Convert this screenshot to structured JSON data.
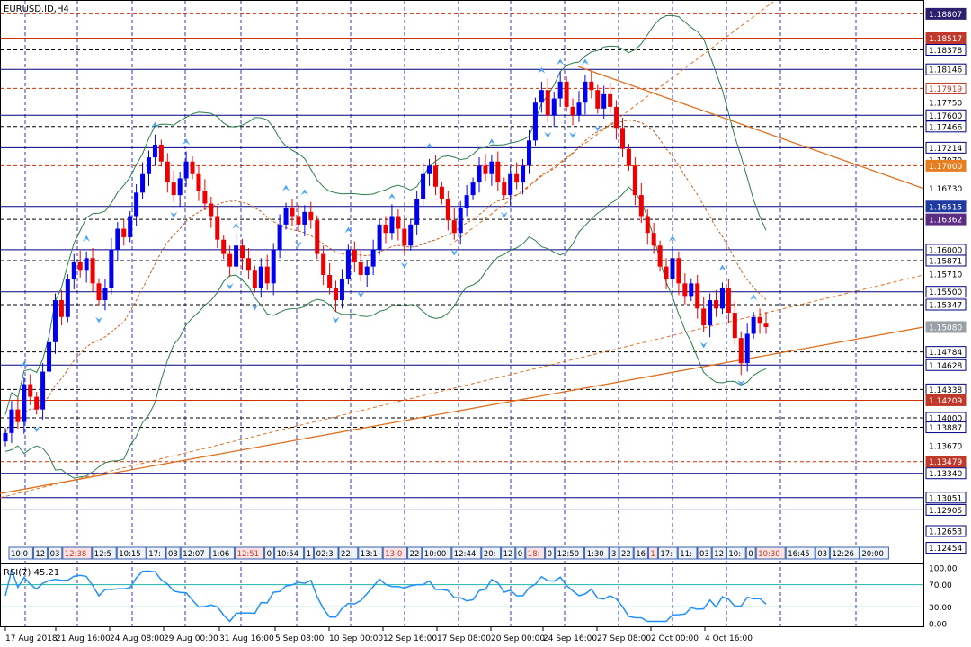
{
  "chart_data": {
    "type": "candlestick",
    "title": "EURUSD.ID,H4",
    "ylim": [
      1.123,
      1.1895
    ],
    "grid": true,
    "price_levels": [
      {
        "value": 1.18807,
        "label": "1.18807",
        "style": "badge-dark"
      },
      {
        "value": 1.18517,
        "label": "1.18517",
        "style": "badge-red"
      },
      {
        "value": 1.18378,
        "label": "1.18378",
        "style": "box"
      },
      {
        "value": 1.18146,
        "label": "1.18146",
        "style": "box"
      },
      {
        "value": 1.17919,
        "label": "1.17919",
        "style": "box-red"
      },
      {
        "value": 1.1775,
        "label": "1.17750",
        "style": "plain"
      },
      {
        "value": 1.176,
        "label": "1.17600",
        "style": "box"
      },
      {
        "value": 1.17466,
        "label": "1.17466",
        "style": "box"
      },
      {
        "value": 1.17214,
        "label": "1.17214",
        "style": "box"
      },
      {
        "value": 1.1707,
        "label": "1.17070",
        "style": "plain"
      },
      {
        "value": 1.17,
        "label": "1.17000",
        "style": "badge-orange"
      },
      {
        "value": 1.1673,
        "label": "1.16730",
        "style": "plain"
      },
      {
        "value": 1.16515,
        "label": "1.16515",
        "style": "badge-blue"
      },
      {
        "value": 1.16362,
        "label": "1.16362",
        "style": "badge-purple"
      },
      {
        "value": 1.16,
        "label": "1.16000",
        "style": "box"
      },
      {
        "value": 1.15871,
        "label": "1.15871",
        "style": "box"
      },
      {
        "value": 1.1571,
        "label": "1.15710",
        "style": "plain"
      },
      {
        "value": 1.155,
        "label": "1.15500",
        "style": "box"
      },
      {
        "value": 1.15347,
        "label": "1.15347",
        "style": "box"
      },
      {
        "value": 1.1508,
        "label": "1.15080",
        "style": "badge-gray"
      },
      {
        "value": 1.14784,
        "label": "1.14784",
        "style": "box"
      },
      {
        "value": 1.14628,
        "label": "1.14628",
        "style": "box"
      },
      {
        "value": 1.14338,
        "label": "1.14338",
        "style": "box"
      },
      {
        "value": 1.14209,
        "label": "1.14209",
        "style": "badge-red"
      },
      {
        "value": 1.14,
        "label": "1.14000",
        "style": "box"
      },
      {
        "value": 1.13887,
        "label": "1.13887",
        "style": "box"
      },
      {
        "value": 1.1367,
        "label": "1.13670",
        "style": "plain"
      },
      {
        "value": 1.13479,
        "label": "1.13479",
        "style": "badge-red"
      },
      {
        "value": 1.1334,
        "label": "1.13340",
        "style": "box"
      },
      {
        "value": 1.13051,
        "label": "1.13051",
        "style": "box"
      },
      {
        "value": 1.12905,
        "label": "1.12905",
        "style": "box"
      },
      {
        "value": 1.12653,
        "label": "1.12653",
        "style": "box"
      },
      {
        "value": 1.12454,
        "label": "1.12454",
        "style": "box"
      }
    ],
    "horizontal_lines": [
      {
        "value": 1.18807,
        "style": "dashed",
        "color": "#cc3300"
      },
      {
        "value": 1.18517,
        "style": "solid",
        "color": "#cc3300"
      },
      {
        "value": 1.18378,
        "style": "dashed",
        "color": "#000000"
      },
      {
        "value": 1.18146,
        "style": "solid",
        "color": "#000080"
      },
      {
        "value": 1.17919,
        "style": "dashed",
        "color": "#cc3300"
      },
      {
        "value": 1.176,
        "style": "solid",
        "color": "#000080"
      },
      {
        "value": 1.17466,
        "style": "dashed",
        "color": "#000000"
      },
      {
        "value": 1.17214,
        "style": "solid",
        "color": "#000080"
      },
      {
        "value": 1.17,
        "style": "dashed",
        "color": "#cc3300"
      },
      {
        "value": 1.16515,
        "style": "solid",
        "color": "#000080"
      },
      {
        "value": 1.16362,
        "style": "dashed",
        "color": "#000000"
      },
      {
        "value": 1.16,
        "style": "solid",
        "color": "#000080"
      },
      {
        "value": 1.15871,
        "style": "dashed",
        "color": "#000000"
      },
      {
        "value": 1.155,
        "style": "solid",
        "color": "#000080"
      },
      {
        "value": 1.15347,
        "style": "dashed",
        "color": "#000000"
      },
      {
        "value": 1.14784,
        "style": "dashed",
        "color": "#000000"
      },
      {
        "value": 1.14628,
        "style": "solid",
        "color": "#000080"
      },
      {
        "value": 1.14338,
        "style": "dashed",
        "color": "#000000"
      },
      {
        "value": 1.14209,
        "style": "solid",
        "color": "#cc3300"
      },
      {
        "value": 1.14,
        "style": "dashed",
        "color": "#000000"
      },
      {
        "value": 1.13887,
        "style": "dashed",
        "color": "#000000"
      },
      {
        "value": 1.13479,
        "style": "dashed",
        "color": "#cc3300"
      },
      {
        "value": 1.1334,
        "style": "solid",
        "color": "#000080"
      },
      {
        "value": 1.13051,
        "style": "solid",
        "color": "#000080"
      },
      {
        "value": 1.12905,
        "style": "solid",
        "color": "#000080"
      }
    ],
    "x_ticks": [
      "17 Aug 2018",
      "21 Aug 16:00",
      "24 Aug 08:00",
      "29 Aug 00:00",
      "31 Aug 16:00",
      "5 Sep 08:00",
      "10 Sep 00:00",
      "12 Sep 16:00",
      "17 Sep 08:00",
      "20 Sep 00:00",
      "24 Sep 16:00",
      "27 Sep 08:00",
      "2 Oct 00:00",
      "4 Oct 16:00"
    ],
    "time_labels": [
      "10:0",
      "12",
      "03",
      "12:38",
      "12:5",
      "10:15",
      "17:",
      "03",
      "12:07",
      "1:06",
      "12:51",
      "0",
      "10:54",
      "1",
      "02:3",
      "22:",
      "13:1",
      "13:0",
      "22",
      "10:00",
      "12:44",
      "20:",
      "12",
      "0",
      "18:",
      "0",
      "12:50",
      "1:30",
      "3",
      "22",
      "16",
      "1",
      "17:",
      "11:",
      "03",
      "12",
      "10:",
      "0",
      "10:30",
      "16:45",
      "03",
      "12:26",
      "20:00"
    ],
    "rsi": {
      "label": "RSI(7) 45.21",
      "levels": [
        100,
        70,
        30,
        0
      ],
      "level_labels": [
        "100.00",
        "70.00",
        "30.00",
        "0.00"
      ]
    },
    "series": [
      {
        "values": [
          1.1382,
          1.141,
          1.1395,
          1.144,
          1.1425,
          1.141,
          1.1455,
          1.149,
          1.154,
          1.152,
          1.1565,
          1.1585,
          1.1575,
          1.159,
          1.156,
          1.154,
          1.1555,
          1.16,
          1.1625,
          1.1615,
          1.164,
          1.1668,
          1.169,
          1.171,
          1.1725,
          1.1705,
          1.168,
          1.1665,
          1.1685,
          1.1705,
          1.169,
          1.167,
          1.1655,
          1.164,
          1.1612,
          1.1595,
          1.158,
          1.1605,
          1.159,
          1.1575,
          1.1555,
          1.158,
          1.156,
          1.16,
          1.163,
          1.165,
          1.164,
          1.163,
          1.1645,
          1.1635,
          1.1595,
          1.157,
          1.1555,
          1.154,
          1.1565,
          1.16,
          1.1585,
          1.157,
          1.158,
          1.16,
          1.163,
          1.162,
          1.164,
          1.1625,
          1.1605,
          1.163,
          1.166,
          1.169,
          1.17,
          1.1675,
          1.166,
          1.1635,
          1.162,
          1.165,
          1.1665,
          1.168,
          1.17,
          1.169,
          1.1705,
          1.168,
          1.1665,
          1.169,
          1.168,
          1.17,
          1.173,
          1.1775,
          1.179,
          1.176,
          1.178,
          1.18,
          1.177,
          1.176,
          1.1775,
          1.18,
          1.179,
          1.1768,
          1.1785,
          1.177,
          1.1745,
          1.172,
          1.17,
          1.1665,
          1.164,
          1.162,
          1.1605,
          1.158,
          1.1565,
          1.159,
          1.156,
          1.1545,
          1.156,
          1.153,
          1.151,
          1.154,
          1.153,
          1.1555,
          1.1525,
          1.1495,
          1.1465,
          1.15,
          1.152,
          1.1512,
          1.1508
        ]
      }
    ]
  }
}
